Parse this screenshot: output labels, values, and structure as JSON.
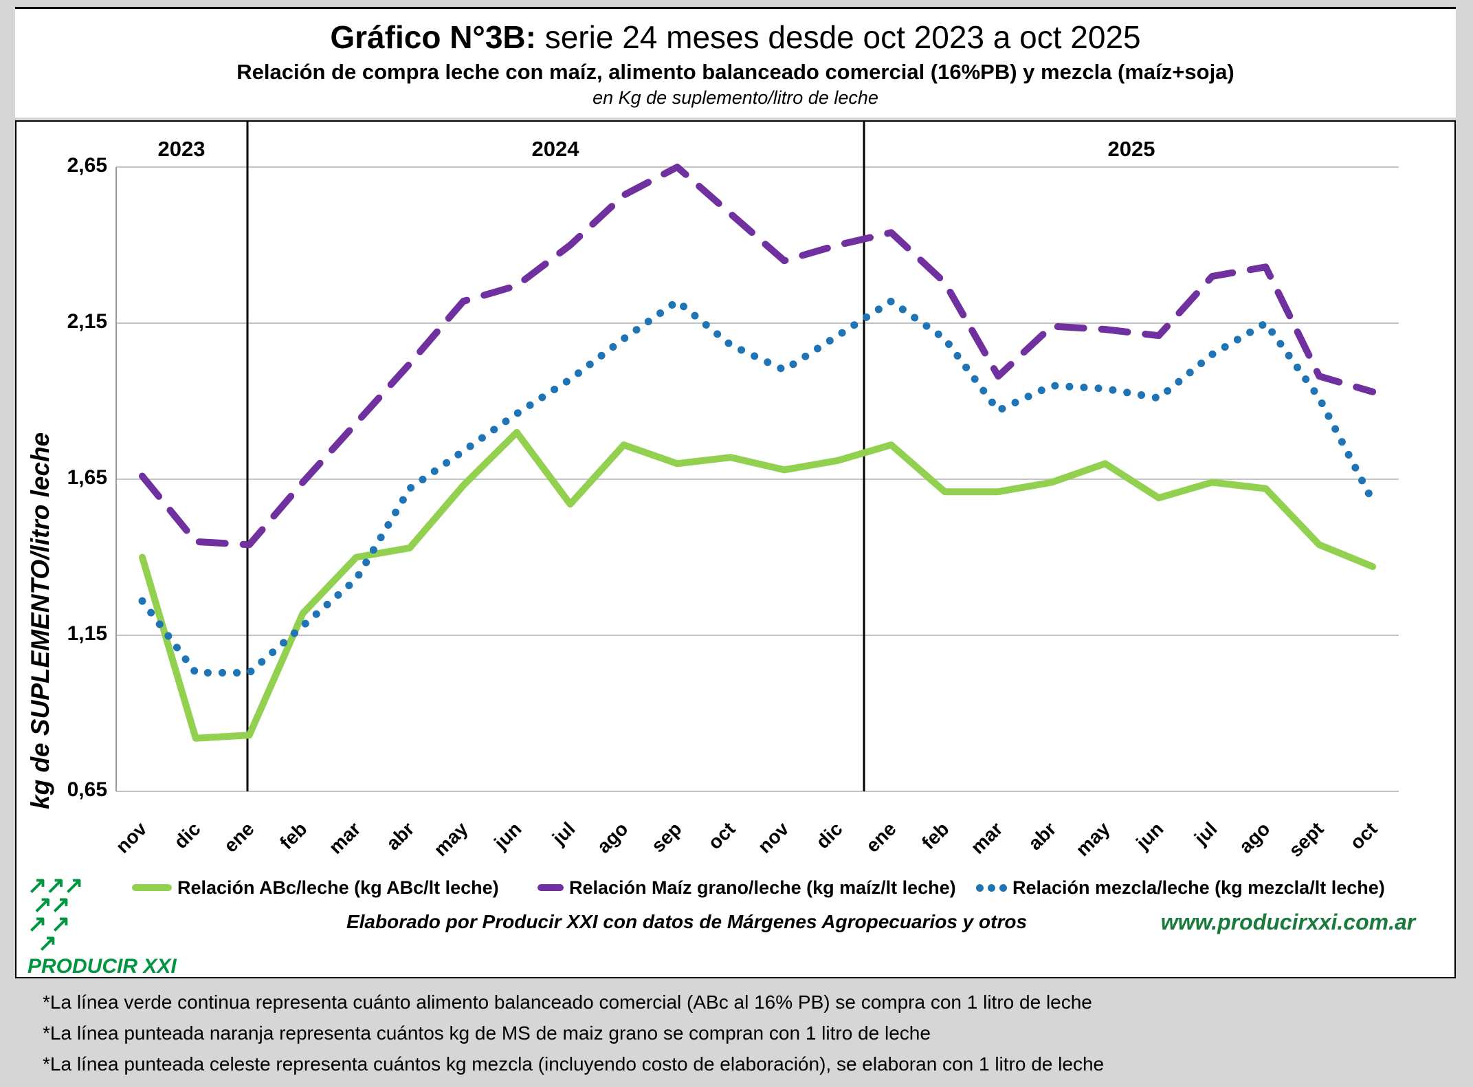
{
  "title": {
    "prefix": "Gráfico N°3B:",
    "rest": " serie 24 meses desde oct 2023 a oct 2025",
    "subtitle": "Relación de compra leche con maíz, alimento balanceado comercial (16%PB) y mezcla (maíz+soja)",
    "unit_line": "en Kg de suplemento/litro de leche"
  },
  "axis": {
    "y_title": "kg de SUPLEMENTO/litro leche",
    "y_ticks": [
      "2,65",
      "2,15",
      "1,65",
      "1,15",
      "0,65"
    ],
    "y_tick_values": [
      2.65,
      2.15,
      1.65,
      1.15,
      0.65
    ],
    "year_labels": [
      "2023",
      "2024",
      "2025"
    ]
  },
  "chart_data": {
    "type": "line",
    "title": "Gráfico N°3B: serie 24 meses desde oct 2023 a oct 2025",
    "xlabel": "",
    "ylabel": "kg de SUPLEMENTO/litro leche",
    "ylim": [
      0.65,
      2.65
    ],
    "grid": true,
    "legend_position": "bottom",
    "categories": [
      "nov",
      "dic",
      "ene",
      "feb",
      "mar",
      "abr",
      "may",
      "jun",
      "jul",
      "ago",
      "sep",
      "oct",
      "nov",
      "dic",
      "ene",
      "feb",
      "mar",
      "abr",
      "may",
      "jun",
      "jul",
      "ago",
      "sept",
      "oct"
    ],
    "year_separators_after_index": [
      1,
      13
    ],
    "series": [
      {
        "name": "Relación ABc/leche (kg ABc/lt leche)",
        "color": "#92D050",
        "style": "solid",
        "values": [
          1.4,
          0.82,
          0.83,
          1.22,
          1.4,
          1.43,
          1.63,
          1.8,
          1.57,
          1.76,
          1.7,
          1.72,
          1.68,
          1.71,
          1.76,
          1.61,
          1.61,
          1.64,
          1.7,
          1.59,
          1.64,
          1.62,
          1.44,
          1.37
        ]
      },
      {
        "name": "Relación Maíz grano/leche (kg maíz/lt leche)",
        "color": "#7030A0",
        "style": "dashed",
        "values": [
          1.66,
          1.45,
          1.44,
          1.64,
          1.83,
          2.02,
          2.22,
          2.27,
          2.4,
          2.56,
          2.65,
          2.5,
          2.35,
          2.4,
          2.44,
          2.28,
          1.98,
          2.14,
          2.13,
          2.11,
          2.3,
          2.33,
          1.98,
          1.93
        ]
      },
      {
        "name": "Relación mezcla/leche (kg mezcla/lt leche)",
        "color": "#1F74B5",
        "style": "dotted",
        "values": [
          1.26,
          1.03,
          1.03,
          1.18,
          1.33,
          1.62,
          1.74,
          1.86,
          1.97,
          2.1,
          2.22,
          2.08,
          2.0,
          2.11,
          2.22,
          2.1,
          1.87,
          1.95,
          1.94,
          1.91,
          2.05,
          2.15,
          1.91,
          1.58
        ]
      }
    ]
  },
  "footer": {
    "logo_text": "PRODUCIR XXI",
    "logo_color": "#009640",
    "credit": "Elaborado por Producir XXI con datos de Márgenes Agropecuarios y otros",
    "website": "www.producirxxi.com.ar",
    "website_color": "#1a7a3c"
  },
  "notes": [
    "*La línea verde continua representa cuánto alimento balanceado comercial (ABc al 16% PB) se compra con 1 litro de leche",
    "*La línea punteada naranja representa cuántos kg de MS de maiz grano se compran con 1 litro de leche",
    "*La línea punteada celeste representa cuántos kg mezcla (incluyendo costo de elaboración), se elaboran con 1 litro de leche"
  ]
}
